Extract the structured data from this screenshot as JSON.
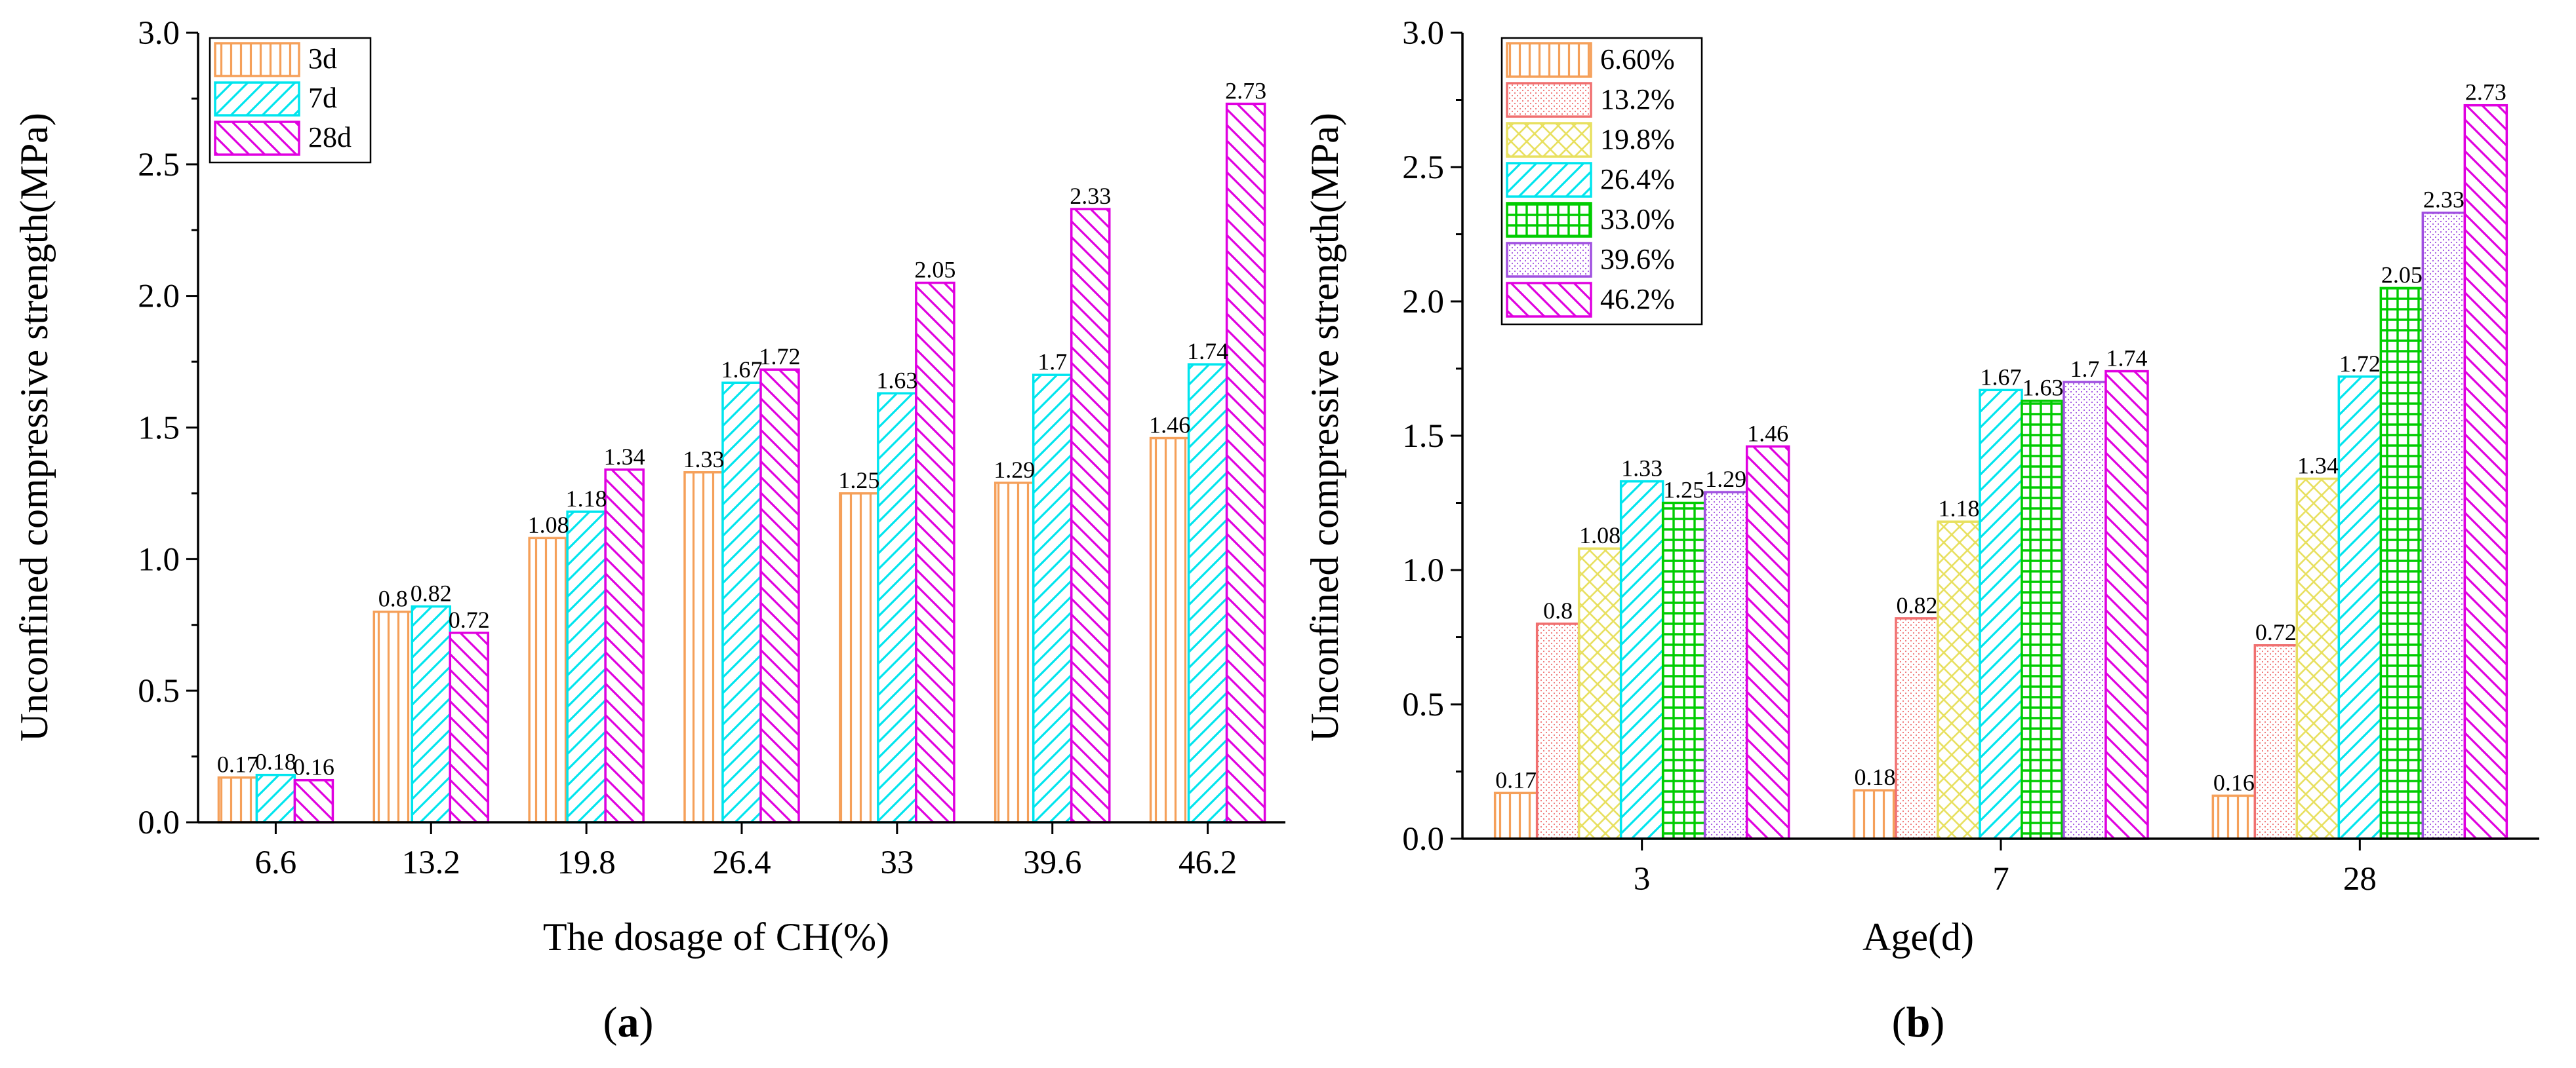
{
  "colors": {
    "orange": "#f5a05a",
    "red": "#f07070",
    "yellow": "#e8e060",
    "cyan": "#00e5ee",
    "green": "#00cc00",
    "purple": "#a050e0",
    "magenta": "#e000e0"
  },
  "chart_data": [
    {
      "type": "bar",
      "panel": "a",
      "xlabel": "The dosage of CH(%)",
      "ylabel": "Unconfined compressive strength(MPa)",
      "ylim": [
        0,
        3.0
      ],
      "yticks": [
        "0.0",
        "0.5",
        "1.0",
        "1.5",
        "2.0",
        "2.5",
        "3.0"
      ],
      "categories": [
        "6.6",
        "13.2",
        "19.8",
        "26.4",
        "33",
        "39.6",
        "46.2"
      ],
      "legend_position": "top-left",
      "series": [
        {
          "name": "3d",
          "color": "orange",
          "pattern": "vert",
          "values": [
            0.17,
            0.8,
            1.08,
            1.33,
            1.25,
            1.29,
            1.46
          ],
          "labels": [
            "0.17",
            "0.8",
            "1.08",
            "1.33",
            "1.25",
            "1.29",
            "1.46"
          ]
        },
        {
          "name": "7d",
          "color": "cyan",
          "pattern": "diag-fwd",
          "values": [
            0.18,
            0.82,
            1.18,
            1.67,
            1.63,
            1.7,
            1.74
          ],
          "labels": [
            "0.18",
            "0.82",
            "1.18",
            "1.67",
            "1.63",
            "1.7",
            "1.74"
          ]
        },
        {
          "name": "28d",
          "color": "magenta",
          "pattern": "diag-back",
          "values": [
            0.16,
            0.72,
            1.34,
            1.72,
            2.05,
            2.33,
            2.73
          ],
          "labels": [
            "0.16",
            "0.72",
            "1.34",
            "1.72",
            "2.05",
            "2.33",
            "2.73"
          ]
        }
      ]
    },
    {
      "type": "bar",
      "panel": "b",
      "xlabel": "Age(d)",
      "ylabel": "Unconfined compressive strength(MPa)",
      "ylim": [
        0,
        3.0
      ],
      "yticks": [
        "0.0",
        "0.5",
        "1.0",
        "1.5",
        "2.0",
        "2.5",
        "3.0"
      ],
      "categories": [
        "3",
        "7",
        "28"
      ],
      "legend_position": "top-left",
      "series": [
        {
          "name": "6.60%",
          "color": "orange",
          "pattern": "vert",
          "values": [
            0.17,
            0.18,
            0.16
          ],
          "labels": [
            "0.17",
            "0.18",
            "0.16"
          ]
        },
        {
          "name": "13.2%",
          "color": "red",
          "pattern": "dots",
          "values": [
            0.8,
            0.82,
            0.72
          ],
          "labels": [
            "0.8",
            "0.82",
            "0.72"
          ]
        },
        {
          "name": "19.8%",
          "color": "yellow",
          "pattern": "cross",
          "values": [
            1.08,
            1.18,
            1.34
          ],
          "labels": [
            "1.08",
            "1.18",
            "1.34"
          ]
        },
        {
          "name": "26.4%",
          "color": "cyan",
          "pattern": "diag-fwd",
          "values": [
            1.33,
            1.67,
            1.72
          ],
          "labels": [
            "1.33",
            "1.67",
            "1.72"
          ]
        },
        {
          "name": "33.0%",
          "color": "green",
          "pattern": "grid",
          "values": [
            1.25,
            1.63,
            2.05
          ],
          "labels": [
            "1.25",
            "1.63",
            "2.05"
          ]
        },
        {
          "name": "39.6%",
          "color": "purple",
          "pattern": "dots",
          "values": [
            1.29,
            1.7,
            2.33
          ],
          "labels": [
            "1.29",
            "1.7",
            "2.33"
          ]
        },
        {
          "name": "46.2%",
          "color": "magenta",
          "pattern": "diag-back",
          "values": [
            1.46,
            1.74,
            2.73
          ],
          "labels": [
            "1.46",
            "1.74",
            "2.73"
          ]
        }
      ]
    }
  ],
  "captions": {
    "a": {
      "open": "(",
      "letter": "a",
      "close": ")"
    },
    "b": {
      "open": "(",
      "letter": "b",
      "close": ")"
    }
  }
}
